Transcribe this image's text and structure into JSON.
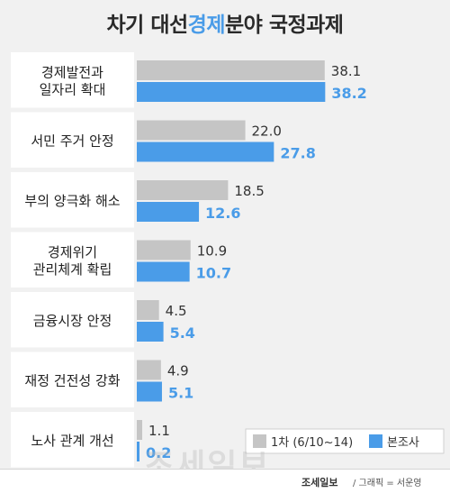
{
  "title": {
    "before": "차기 대선 ",
    "highlight": "경제",
    "after": "분야 국정과제"
  },
  "colors": {
    "series1": "#c5c5c5",
    "series2": "#4a9ce8",
    "highlight": "#4a9ce8",
    "label_panel": "#ffffff",
    "background": "#f1f1f1"
  },
  "chart_data": {
    "type": "bar",
    "orientation": "horizontal",
    "title": "차기 대선 경제분야 국정과제",
    "categories": [
      [
        "경제발전과",
        "일자리 확대"
      ],
      [
        "서민 주거 안정"
      ],
      [
        "부의 양극화 해소"
      ],
      [
        "경제위기",
        "관리체계 확립"
      ],
      [
        "금융시장 안정"
      ],
      [
        "재정 건전성 강화"
      ],
      [
        "노사 관계 개선"
      ]
    ],
    "series": [
      {
        "name": "1차 (6/10~14)",
        "values": [
          38.1,
          22.0,
          18.5,
          10.9,
          4.5,
          4.9,
          1.1
        ]
      },
      {
        "name": "본조사",
        "values": [
          38.2,
          27.8,
          12.6,
          10.7,
          5.4,
          5.1,
          0.2
        ]
      }
    ],
    "xlim": [
      0,
      40
    ],
    "legend_position": "bottom-right",
    "grid": false
  },
  "footer": {
    "logo": "조세일보",
    "credit": " / 그래픽 = 서운영"
  },
  "watermark": "조세일보"
}
